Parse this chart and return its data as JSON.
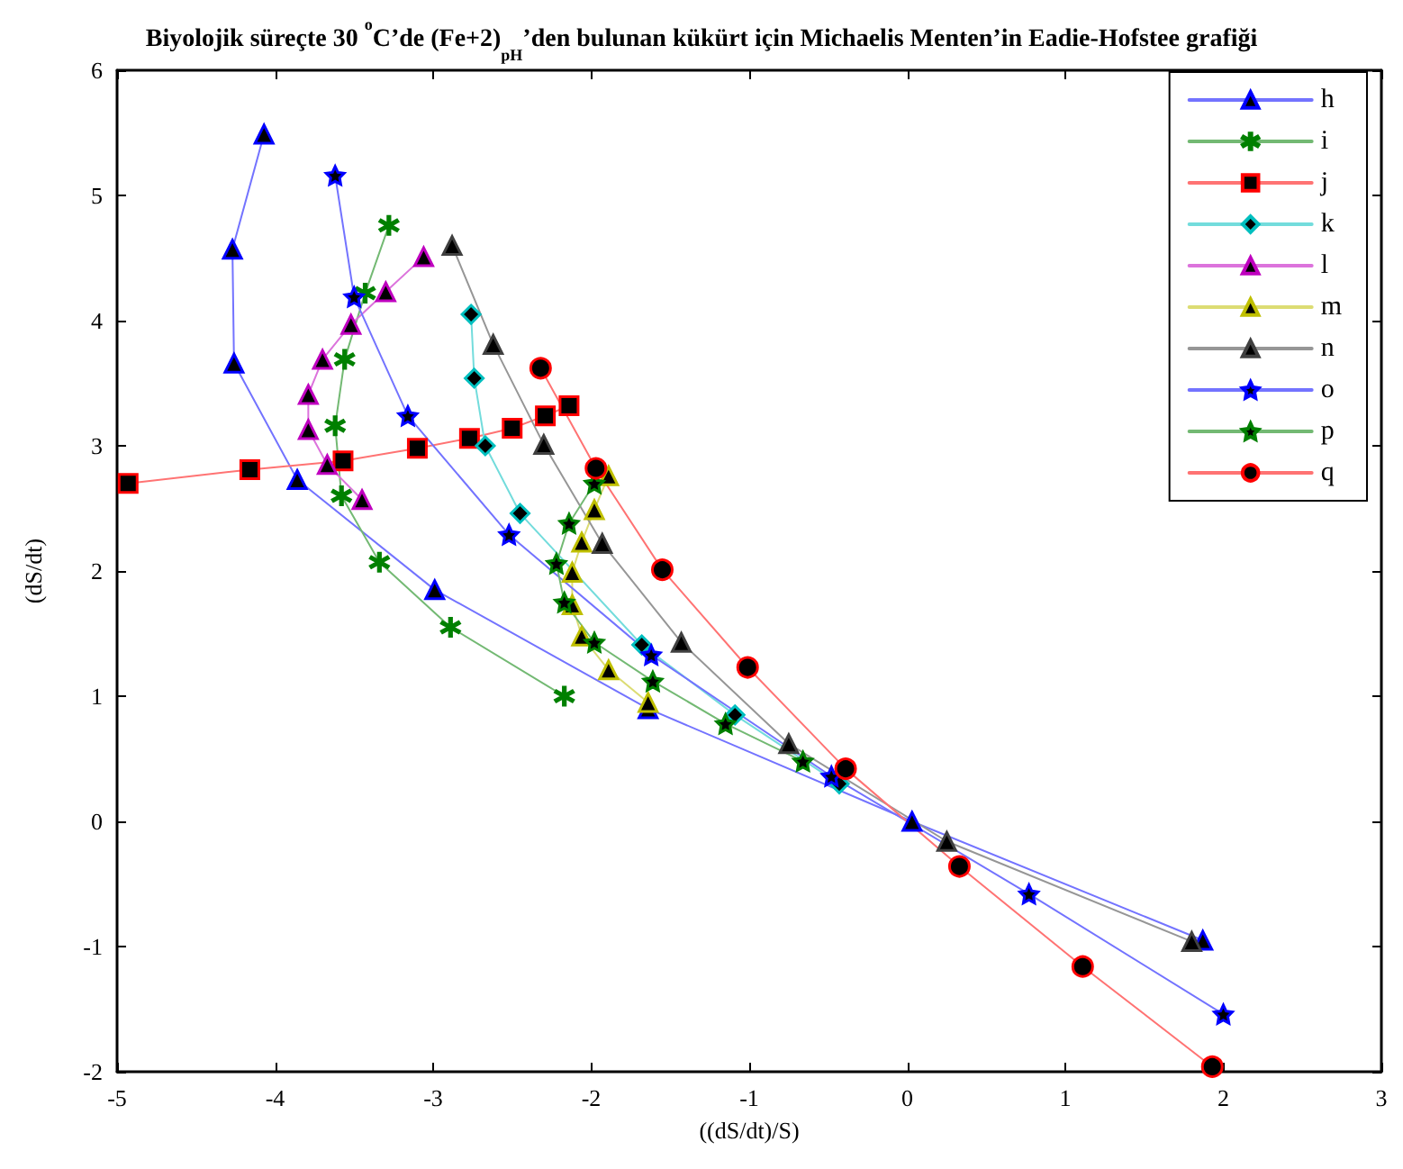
{
  "chart_data": {
    "type": "line",
    "title": "Biyolojik süreçte 30 $^{o}$C’de (Fe+2)$_{pH}$’den bulunan kükürt için Michaelis Menten’in Eadie-Hofstee grafiği",
    "xlabel": "((dS/dt)/S)",
    "ylabel": "(dS/dt)",
    "xlim": [
      -5,
      3
    ],
    "xticks": [
      -5,
      -4,
      -3,
      -2,
      -1,
      0,
      1,
      2,
      3
    ],
    "ylim": [
      -2,
      6
    ],
    "yticks": [
      -2,
      -1,
      0,
      1,
      2,
      3,
      4,
      5,
      6
    ],
    "grid": false,
    "legend": "top right",
    "line_style": "solid",
    "series": [
      {
        "name": "h",
        "color": "#0000ff",
        "marker": "triangle",
        "x": [
          -4.07,
          -4.27,
          -4.26,
          -3.86,
          -2.99,
          -1.64,
          0.03,
          1.87
        ],
        "values": [
          5.49,
          4.57,
          3.66,
          2.73,
          1.85,
          0.9,
          0.0,
          -0.95
        ]
      },
      {
        "name": "i",
        "color": "#008000",
        "marker": "cross",
        "x": [
          -3.28,
          -3.43,
          -3.56,
          -3.62,
          -3.58,
          -3.34,
          -2.89,
          -2.17
        ],
        "values": [
          4.76,
          4.22,
          3.69,
          3.16,
          2.6,
          2.07,
          1.55,
          1.0
        ]
      },
      {
        "name": "j",
        "color": "#ff0000",
        "marker": "square",
        "x": [
          -4.93,
          -4.16,
          -3.57,
          -3.1,
          -2.77,
          -2.5,
          -2.29,
          -2.14
        ],
        "values": [
          2.7,
          2.81,
          2.88,
          2.98,
          3.06,
          3.14,
          3.24,
          3.32
        ]
      },
      {
        "name": "k",
        "color": "#00bfbf",
        "marker": "diamond",
        "x": [
          -2.76,
          -2.74,
          -2.67,
          -2.45,
          -1.68,
          -1.09,
          -0.43
        ],
        "values": [
          4.05,
          3.54,
          3.0,
          2.46,
          1.41,
          0.85,
          0.3
        ]
      },
      {
        "name": "l",
        "color": "#bf00bf",
        "marker": "triangle",
        "x": [
          -3.06,
          -3.3,
          -3.52,
          -3.7,
          -3.79,
          -3.79,
          -3.67,
          -3.45
        ],
        "values": [
          4.51,
          4.23,
          3.97,
          3.69,
          3.41,
          3.13,
          2.85,
          2.57
        ]
      },
      {
        "name": "m",
        "color": "#bfbf00",
        "marker": "triangle",
        "x": [
          -1.89,
          -1.98,
          -2.06,
          -2.12,
          -2.12,
          -2.06,
          -1.89,
          -1.64
        ],
        "values": [
          2.76,
          2.49,
          2.23,
          1.99,
          1.73,
          1.48,
          1.21,
          0.95
        ]
      },
      {
        "name": "n",
        "color": "#404040",
        "marker": "triangle",
        "x": [
          -2.88,
          -2.62,
          -2.3,
          -1.93,
          -1.43,
          -0.75,
          0.25,
          1.8
        ],
        "values": [
          4.6,
          3.81,
          3.01,
          2.22,
          1.43,
          0.62,
          -0.16,
          -0.96
        ]
      },
      {
        "name": "o",
        "color": "#0000ff",
        "marker": "star",
        "x": [
          -3.62,
          -3.5,
          -3.16,
          -2.52,
          -1.62,
          -0.48,
          0.77,
          2.0
        ],
        "values": [
          5.16,
          4.19,
          3.24,
          2.29,
          1.33,
          0.36,
          -0.58,
          -1.54
        ]
      },
      {
        "name": "p",
        "color": "#008000",
        "marker": "star",
        "x": [
          -1.98,
          -2.14,
          -2.22,
          -2.17,
          -1.98,
          -1.61,
          -1.15,
          -0.66
        ],
        "values": [
          2.7,
          2.38,
          2.06,
          1.75,
          1.43,
          1.12,
          0.78,
          0.48
        ]
      },
      {
        "name": "q",
        "color": "#ff0000",
        "marker": "circle",
        "x": [
          -2.32,
          -1.97,
          -1.55,
          -1.01,
          -0.39,
          0.33,
          1.11,
          1.93
        ],
        "values": [
          3.62,
          2.82,
          2.01,
          1.23,
          0.42,
          -0.36,
          -1.16,
          -1.96
        ]
      }
    ]
  }
}
